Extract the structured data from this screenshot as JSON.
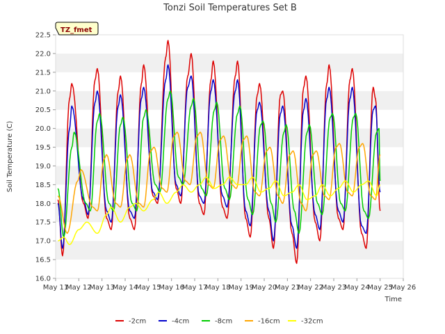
{
  "chart_data": {
    "type": "line",
    "title": "Tonzi Soil Temperatures Set B",
    "xlabel": "Time",
    "ylabel": "Soil Temperature (C)",
    "tag": "TZ_fmet",
    "ylim": [
      16.0,
      22.5
    ],
    "xlim": [
      11,
      26
    ],
    "x_ticks": [
      "May 11",
      "May 12",
      "May 13",
      "May 14",
      "May 15",
      "May 16",
      "May 17",
      "May 18",
      "May 19",
      "May 20",
      "May 21",
      "May 22",
      "May 23",
      "May 24",
      "May 25",
      "May 26"
    ],
    "y_ticks": [
      "16.0",
      "16.5",
      "17.0",
      "17.5",
      "18.0",
      "18.5",
      "19.0",
      "19.5",
      "20.0",
      "20.5",
      "21.0",
      "21.5",
      "22.0",
      "22.5"
    ],
    "grid": "horizontal bands",
    "legend_position": "bottom",
    "series": [
      {
        "name": "-2cm",
        "color": "#dd0000",
        "points": [
          [
            11.1,
            18.1
          ],
          [
            11.3,
            16.6
          ],
          [
            11.6,
            20.8
          ],
          [
            11.7,
            21.2
          ],
          [
            12.2,
            18.0
          ],
          [
            12.4,
            17.6
          ],
          [
            12.7,
            21.3
          ],
          [
            12.8,
            21.6
          ],
          [
            13.2,
            17.6
          ],
          [
            13.4,
            17.3
          ],
          [
            13.7,
            21.0
          ],
          [
            13.8,
            21.4
          ],
          [
            14.2,
            17.6
          ],
          [
            14.4,
            17.3
          ],
          [
            14.7,
            21.2
          ],
          [
            14.8,
            21.7
          ],
          [
            15.2,
            18.2
          ],
          [
            15.4,
            18.0
          ],
          [
            15.75,
            21.9
          ],
          [
            15.85,
            22.35
          ],
          [
            16.2,
            18.4
          ],
          [
            16.4,
            18.0
          ],
          [
            16.7,
            21.4
          ],
          [
            16.85,
            22.0
          ],
          [
            17.2,
            18.0
          ],
          [
            17.4,
            17.7
          ],
          [
            17.7,
            21.3
          ],
          [
            17.8,
            21.8
          ],
          [
            18.2,
            17.9
          ],
          [
            18.4,
            17.6
          ],
          [
            18.75,
            21.4
          ],
          [
            18.85,
            21.8
          ],
          [
            19.2,
            17.6
          ],
          [
            19.4,
            17.1
          ],
          [
            19.7,
            20.9
          ],
          [
            19.8,
            21.2
          ],
          [
            20.2,
            17.6
          ],
          [
            20.4,
            16.8
          ],
          [
            20.7,
            20.9
          ],
          [
            20.8,
            21.0
          ],
          [
            21.2,
            17.2
          ],
          [
            21.4,
            16.4
          ],
          [
            21.7,
            21.1
          ],
          [
            21.8,
            21.4
          ],
          [
            22.2,
            17.5
          ],
          [
            22.4,
            17.0
          ],
          [
            22.7,
            21.2
          ],
          [
            22.8,
            21.7
          ],
          [
            23.2,
            17.6
          ],
          [
            23.4,
            17.3
          ],
          [
            23.7,
            21.3
          ],
          [
            23.8,
            21.6
          ],
          [
            24.2,
            17.2
          ],
          [
            24.4,
            16.8
          ],
          [
            24.7,
            21.1
          ],
          [
            24.8,
            20.8
          ],
          [
            25.0,
            17.8
          ]
        ]
      },
      {
        "name": "-4cm",
        "color": "#0000cc",
        "points": [
          [
            11.1,
            18.0
          ],
          [
            11.3,
            16.8
          ],
          [
            11.6,
            20.0
          ],
          [
            11.7,
            20.6
          ],
          [
            12.2,
            18.1
          ],
          [
            12.4,
            17.7
          ],
          [
            12.7,
            20.7
          ],
          [
            12.8,
            21.0
          ],
          [
            13.2,
            17.8
          ],
          [
            13.4,
            17.5
          ],
          [
            13.7,
            20.6
          ],
          [
            13.8,
            20.9
          ],
          [
            14.2,
            17.8
          ],
          [
            14.4,
            17.6
          ],
          [
            14.7,
            20.8
          ],
          [
            14.8,
            21.1
          ],
          [
            15.2,
            18.3
          ],
          [
            15.4,
            18.1
          ],
          [
            15.75,
            21.3
          ],
          [
            15.85,
            21.7
          ],
          [
            16.2,
            18.5
          ],
          [
            16.4,
            18.2
          ],
          [
            16.7,
            21.1
          ],
          [
            16.85,
            21.4
          ],
          [
            17.2,
            18.2
          ],
          [
            17.4,
            18.0
          ],
          [
            17.7,
            21.0
          ],
          [
            17.8,
            21.3
          ],
          [
            18.2,
            18.2
          ],
          [
            18.4,
            17.9
          ],
          [
            18.75,
            21.0
          ],
          [
            18.85,
            21.3
          ],
          [
            19.2,
            17.8
          ],
          [
            19.4,
            17.4
          ],
          [
            19.7,
            20.5
          ],
          [
            19.8,
            20.7
          ],
          [
            20.2,
            17.8
          ],
          [
            20.4,
            17.0
          ],
          [
            20.7,
            20.4
          ],
          [
            20.8,
            20.6
          ],
          [
            21.2,
            17.4
          ],
          [
            21.4,
            16.8
          ],
          [
            21.7,
            20.5
          ],
          [
            21.8,
            20.8
          ],
          [
            22.2,
            17.7
          ],
          [
            22.4,
            17.3
          ],
          [
            22.7,
            20.8
          ],
          [
            22.8,
            21.1
          ],
          [
            23.2,
            17.8
          ],
          [
            23.4,
            17.5
          ],
          [
            23.7,
            20.8
          ],
          [
            23.8,
            21.1
          ],
          [
            24.2,
            17.4
          ],
          [
            24.4,
            17.2
          ],
          [
            24.7,
            20.5
          ],
          [
            24.8,
            20.6
          ],
          [
            25.0,
            18.3
          ]
        ]
      },
      {
        "name": "-8cm",
        "color": "#00cc00",
        "points": [
          [
            11.1,
            18.4
          ],
          [
            11.35,
            17.1
          ],
          [
            11.7,
            19.5
          ],
          [
            11.8,
            19.9
          ],
          [
            12.3,
            18.0
          ],
          [
            12.5,
            17.8
          ],
          [
            12.8,
            20.2
          ],
          [
            12.9,
            20.4
          ],
          [
            13.3,
            18.0
          ],
          [
            13.5,
            17.8
          ],
          [
            13.8,
            20.1
          ],
          [
            13.9,
            20.3
          ],
          [
            14.3,
            18.0
          ],
          [
            14.5,
            17.8
          ],
          [
            14.8,
            20.3
          ],
          [
            14.9,
            20.5
          ],
          [
            15.3,
            18.5
          ],
          [
            15.5,
            18.3
          ],
          [
            15.85,
            20.8
          ],
          [
            15.95,
            21.0
          ],
          [
            16.3,
            18.7
          ],
          [
            16.5,
            18.5
          ],
          [
            16.85,
            20.6
          ],
          [
            16.95,
            20.8
          ],
          [
            17.3,
            18.4
          ],
          [
            17.5,
            18.2
          ],
          [
            17.85,
            20.5
          ],
          [
            17.95,
            20.7
          ],
          [
            18.3,
            18.4
          ],
          [
            18.5,
            18.1
          ],
          [
            18.85,
            20.4
          ],
          [
            18.95,
            20.6
          ],
          [
            19.3,
            18.1
          ],
          [
            19.5,
            17.7
          ],
          [
            19.85,
            20.1
          ],
          [
            19.95,
            20.2
          ],
          [
            20.3,
            18.0
          ],
          [
            20.5,
            17.5
          ],
          [
            20.85,
            19.9
          ],
          [
            20.95,
            20.1
          ],
          [
            21.3,
            17.8
          ],
          [
            21.5,
            17.2
          ],
          [
            21.85,
            19.9
          ],
          [
            21.95,
            20.1
          ],
          [
            22.3,
            18.0
          ],
          [
            22.5,
            17.7
          ],
          [
            22.85,
            20.3
          ],
          [
            22.95,
            20.4
          ],
          [
            23.3,
            18.0
          ],
          [
            23.5,
            17.8
          ],
          [
            23.85,
            20.3
          ],
          [
            23.95,
            20.4
          ],
          [
            24.3,
            17.8
          ],
          [
            24.5,
            17.6
          ],
          [
            24.85,
            19.9
          ],
          [
            24.95,
            20.0
          ],
          [
            25.0,
            18.6
          ]
        ]
      },
      {
        "name": "-16cm",
        "color": "#ffa500",
        "points": [
          [
            11.1,
            18.2
          ],
          [
            11.5,
            17.2
          ],
          [
            11.95,
            18.6
          ],
          [
            12.1,
            18.9
          ],
          [
            12.6,
            17.9
          ],
          [
            12.8,
            17.8
          ],
          [
            13.1,
            19.2
          ],
          [
            13.2,
            19.3
          ],
          [
            13.6,
            18.0
          ],
          [
            13.8,
            17.9
          ],
          [
            14.1,
            19.2
          ],
          [
            14.2,
            19.3
          ],
          [
            14.6,
            18.0
          ],
          [
            14.8,
            17.9
          ],
          [
            15.1,
            19.4
          ],
          [
            15.25,
            19.5
          ],
          [
            15.6,
            18.4
          ],
          [
            15.8,
            18.3
          ],
          [
            16.1,
            19.8
          ],
          [
            16.25,
            19.9
          ],
          [
            16.6,
            18.6
          ],
          [
            16.8,
            18.5
          ],
          [
            17.1,
            19.8
          ],
          [
            17.25,
            19.9
          ],
          [
            17.6,
            18.5
          ],
          [
            17.8,
            18.4
          ],
          [
            18.1,
            19.7
          ],
          [
            18.25,
            19.8
          ],
          [
            18.6,
            18.5
          ],
          [
            18.8,
            18.4
          ],
          [
            19.1,
            19.7
          ],
          [
            19.25,
            19.8
          ],
          [
            19.6,
            18.3
          ],
          [
            19.8,
            18.2
          ],
          [
            20.1,
            19.4
          ],
          [
            20.25,
            19.5
          ],
          [
            20.6,
            18.2
          ],
          [
            20.8,
            18.0
          ],
          [
            21.1,
            19.3
          ],
          [
            21.25,
            19.4
          ],
          [
            21.6,
            18.0
          ],
          [
            21.8,
            17.8
          ],
          [
            22.1,
            19.3
          ],
          [
            22.25,
            19.4
          ],
          [
            22.6,
            18.2
          ],
          [
            22.8,
            18.1
          ],
          [
            23.1,
            19.5
          ],
          [
            23.25,
            19.6
          ],
          [
            23.6,
            18.3
          ],
          [
            23.8,
            18.2
          ],
          [
            24.1,
            19.5
          ],
          [
            24.25,
            19.6
          ],
          [
            24.6,
            18.2
          ],
          [
            24.8,
            18.1
          ],
          [
            25.0,
            19.3
          ]
        ]
      },
      {
        "name": "-32cm",
        "color": "#ffff00",
        "points": [
          [
            11.1,
            17.0
          ],
          [
            11.35,
            17.1
          ],
          [
            11.6,
            16.9
          ],
          [
            12.0,
            17.3
          ],
          [
            12.35,
            17.5
          ],
          [
            12.8,
            17.2
          ],
          [
            13.2,
            17.7
          ],
          [
            13.4,
            17.9
          ],
          [
            13.8,
            17.5
          ],
          [
            14.2,
            17.9
          ],
          [
            14.45,
            18.0
          ],
          [
            14.8,
            17.8
          ],
          [
            15.2,
            18.1
          ],
          [
            15.45,
            18.3
          ],
          [
            15.8,
            18.0
          ],
          [
            16.2,
            18.3
          ],
          [
            16.5,
            18.5
          ],
          [
            16.85,
            18.3
          ],
          [
            17.2,
            18.5
          ],
          [
            17.5,
            18.7
          ],
          [
            17.85,
            18.4
          ],
          [
            18.2,
            18.5
          ],
          [
            18.5,
            18.7
          ],
          [
            18.85,
            18.5
          ],
          [
            19.2,
            18.5
          ],
          [
            19.5,
            18.7
          ],
          [
            19.85,
            18.3
          ],
          [
            20.2,
            18.4
          ],
          [
            20.5,
            18.6
          ],
          [
            20.85,
            18.2
          ],
          [
            21.2,
            18.3
          ],
          [
            21.5,
            18.5
          ],
          [
            21.85,
            18.1
          ],
          [
            22.2,
            18.2
          ],
          [
            22.5,
            18.5
          ],
          [
            22.85,
            18.2
          ],
          [
            23.2,
            18.4
          ],
          [
            23.5,
            18.6
          ],
          [
            23.85,
            18.3
          ],
          [
            24.2,
            18.5
          ],
          [
            24.5,
            18.6
          ],
          [
            24.85,
            18.2
          ],
          [
            25.0,
            18.5
          ]
        ]
      }
    ]
  }
}
